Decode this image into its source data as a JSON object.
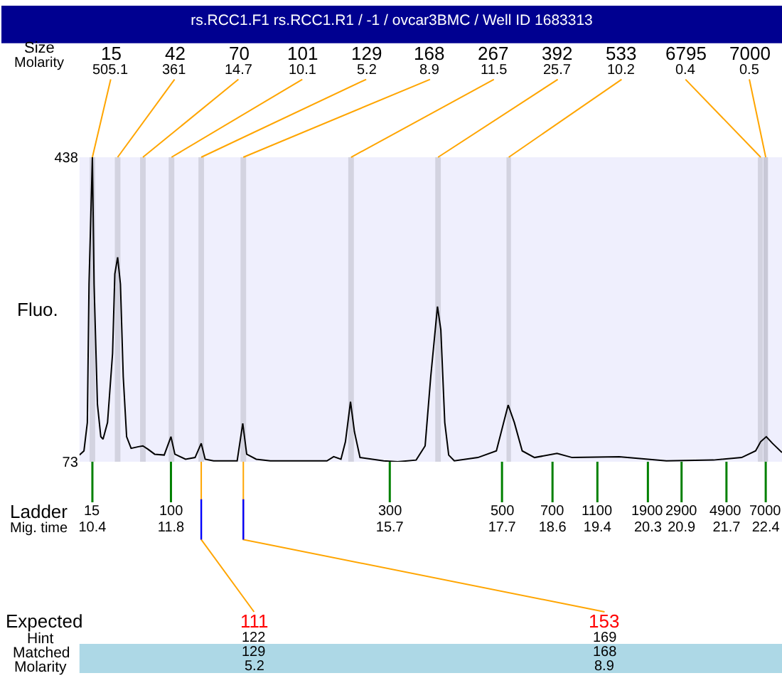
{
  "chart_data": {
    "type": "line",
    "title": "rs.RCC1.F1 rs.RCC1.R1 / -1 / ovcar3BMC / Well ID 1683313",
    "xlabel": "Mig. time",
    "ylabel": "Fluo.",
    "xlim": [
      10.17,
      22.69
    ],
    "xticks": [
      10.4,
      11.8,
      15.7,
      17.7,
      18.6,
      19.4,
      20.3,
      20.9,
      21.7,
      22.4
    ],
    "ylim": [
      73,
      438
    ],
    "yticks": [
      73,
      438
    ],
    "series": [
      {
        "color": "#000000",
        "x": [
          10.17,
          10.25,
          10.31,
          10.34,
          10.4,
          10.43,
          10.49,
          10.55,
          10.59,
          10.67,
          10.76,
          10.8,
          10.85,
          10.9,
          10.95,
          11.01,
          11.09,
          11.22,
          11.3,
          11.39,
          11.51,
          11.68,
          11.8,
          11.87,
          12.06,
          12.23,
          12.34,
          12.41,
          12.56,
          12.98,
          13.08,
          13.15,
          13.32,
          13.57,
          14.58,
          14.7,
          14.83,
          14.91,
          15.0,
          15.07,
          15.17,
          15.59,
          15.84,
          16.17,
          16.33,
          16.43,
          16.55,
          16.61,
          16.68,
          16.75,
          16.85,
          17.27,
          17.6,
          17.73,
          17.81,
          17.92,
          18.06,
          18.28,
          18.68,
          18.95,
          19.79,
          20.63,
          21.47,
          21.97,
          22.22,
          22.31,
          22.41,
          22.52,
          22.69
        ],
        "values": [
          81,
          86,
          120,
          286,
          438,
          286,
          142,
          103,
          100,
          120,
          203,
          298,
          318,
          286,
          175,
          103,
          89,
          91,
          92,
          88,
          82,
          81,
          103,
          82,
          76,
          78,
          95,
          76,
          74,
          74,
          119,
          82,
          76,
          74,
          74,
          79,
          76,
          97,
          145,
          109,
          78,
          74,
          73,
          75,
          92,
          175,
          259,
          231,
          120,
          81,
          74,
          78,
          86,
          120,
          141,
          120,
          86,
          78,
          83,
          78,
          79,
          74,
          75,
          78,
          86,
          97,
          103,
          95,
          84
        ]
      }
    ],
    "bands": [
      {
        "axis": "x",
        "from": 10.35,
        "to": 10.45,
        "label": "15",
        "color": "#d3d3e0"
      },
      {
        "axis": "x",
        "from": 10.8,
        "to": 10.9,
        "label": "42",
        "color": "#d3d3e0"
      },
      {
        "axis": "x",
        "from": 11.25,
        "to": 11.35,
        "label": "70",
        "color": "#d3d3e0"
      },
      {
        "axis": "x",
        "from": 11.76,
        "to": 11.86,
        "label": "101",
        "color": "#d3d3e0"
      },
      {
        "axis": "x",
        "from": 12.29,
        "to": 12.39,
        "label": "129",
        "color": "#d3d3e0"
      },
      {
        "axis": "x",
        "from": 13.04,
        "to": 13.14,
        "label": "168",
        "color": "#d3d3e0"
      },
      {
        "axis": "x",
        "from": 14.96,
        "to": 15.06,
        "label": "267",
        "color": "#d3d3e0"
      },
      {
        "axis": "x",
        "from": 16.51,
        "to": 16.61,
        "label": "392",
        "color": "#d3d3e0"
      },
      {
        "axis": "x",
        "from": 17.78,
        "to": 17.86,
        "label": "533",
        "color": "#d3d3e0"
      },
      {
        "axis": "x",
        "from": 22.26,
        "to": 22.35,
        "label": "6795",
        "color": "#d3d3e0"
      },
      {
        "axis": "x",
        "from": 22.36,
        "to": 22.44,
        "label": "7000",
        "color": "#c8c8d6"
      }
    ],
    "annotations": [
      {
        "text": "505.1",
        "x": 10.4,
        "y": 438
      },
      {
        "text": "361",
        "x": 10.85,
        "y": 438
      },
      {
        "text": "14.7",
        "x": 11.3,
        "y": 438
      },
      {
        "text": "10.1",
        "x": 11.81,
        "y": 438
      },
      {
        "text": "5.2",
        "x": 12.34,
        "y": 438
      },
      {
        "text": "8.9",
        "x": 13.09,
        "y": 438
      },
      {
        "text": "11.5",
        "x": 15.01,
        "y": 438
      },
      {
        "text": "25.7",
        "x": 16.56,
        "y": 438
      },
      {
        "text": "10.2",
        "x": 17.82,
        "y": 438
      },
      {
        "text": "0.4",
        "x": 22.31,
        "y": 438
      },
      {
        "text": "0.5",
        "x": 22.4,
        "y": 438
      },
      {
        "text": "15",
        "x": 10.4,
        "y": 73
      },
      {
        "text": "100",
        "x": 11.8,
        "y": 73
      },
      {
        "text": "300",
        "x": 15.7,
        "y": 73
      },
      {
        "text": "500",
        "x": 17.7,
        "y": 73
      },
      {
        "text": "700",
        "x": 18.6,
        "y": 73
      },
      {
        "text": "1100",
        "x": 19.4,
        "y": 73
      },
      {
        "text": "1900",
        "x": 20.3,
        "y": 73
      },
      {
        "text": "2900",
        "x": 20.9,
        "y": 73
      },
      {
        "text": "4900",
        "x": 21.7,
        "y": 73
      },
      {
        "text": "7000",
        "x": 22.4,
        "y": 73
      },
      "Size",
      "Molarity",
      "Ladder",
      "Expected",
      "Hint",
      "Matched",
      "Molarity",
      {
        "text": "111",
        "x": 12.34,
        "y": 73
      },
      {
        "text": "153",
        "x": 13.09,
        "y": 73
      },
      "122",
      "129",
      "5.2",
      "169",
      "168",
      "8.9"
    ]
  }
}
